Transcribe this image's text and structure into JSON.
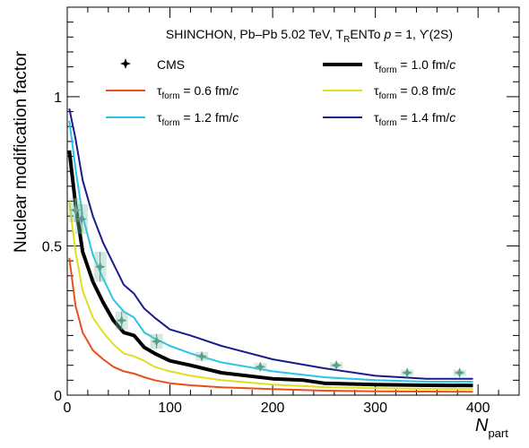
{
  "chart_data": {
    "type": "line",
    "annotation": {
      "prefix": "SHINCHON, Pb–Pb 5.02 TeV, T",
      "sub": "R",
      "mid": "ENTo ",
      "p": "p",
      "suffix": " = 1, ϒ(2S)"
    },
    "xlabel": {
      "main": "N",
      "sub": "part"
    },
    "ylabel": "Nuclear modification factor",
    "xlim": [
      0,
      440
    ],
    "ylim": [
      0,
      1.3
    ],
    "x_ticks": [
      "0",
      "100",
      "200",
      "300",
      "400"
    ],
    "y_ticks": [
      "0",
      "0.5",
      "1"
    ],
    "legend": {
      "placement": "top",
      "cms_label": "CMS",
      "tau_symbol": "τ",
      "tau_sub": "form",
      "units": " fm/",
      "c": "c"
    },
    "cms_points": [
      {
        "x": 8,
        "y": 0.62,
        "err": 0.04
      },
      {
        "x": 14,
        "y": 0.59,
        "err": 0.05
      },
      {
        "x": 32,
        "y": 0.43,
        "err": 0.05
      },
      {
        "x": 53,
        "y": 0.25,
        "err": 0.03
      },
      {
        "x": 87,
        "y": 0.18,
        "err": 0.025
      },
      {
        "x": 131,
        "y": 0.13,
        "err": 0.015
      },
      {
        "x": 188,
        "y": 0.095,
        "err": 0.012
      },
      {
        "x": 262,
        "y": 0.1,
        "err": 0.01
      },
      {
        "x": 331,
        "y": 0.075,
        "err": 0.01
      },
      {
        "x": 382,
        "y": 0.075,
        "err": 0.01
      }
    ],
    "series": [
      {
        "value": "0.6",
        "color": "#e8501a",
        "legend_col": 0,
        "legend_row": 1,
        "x": [
          2,
          8,
          15,
          25,
          35,
          45,
          55,
          65,
          75,
          85,
          100,
          120,
          150,
          200,
          250,
          300,
          350,
          395
        ],
        "y": [
          0.46,
          0.3,
          0.21,
          0.15,
          0.12,
          0.095,
          0.08,
          0.072,
          0.06,
          0.05,
          0.04,
          0.033,
          0.026,
          0.02,
          0.015,
          0.013,
          0.012,
          0.011
        ]
      },
      {
        "value": "0.8",
        "color": "#e4dc1e",
        "legend_col": 1,
        "legend_row": 1,
        "x": [
          2,
          8,
          15,
          25,
          35,
          45,
          55,
          65,
          75,
          85,
          100,
          120,
          150,
          200,
          250,
          300,
          350,
          395
        ],
        "y": [
          0.65,
          0.48,
          0.35,
          0.26,
          0.21,
          0.17,
          0.14,
          0.13,
          0.115,
          0.095,
          0.08,
          0.065,
          0.05,
          0.035,
          0.027,
          0.023,
          0.021,
          0.02
        ]
      },
      {
        "value": "1.0",
        "color": "#000000",
        "legend_col": 1,
        "legend_row": 0,
        "thick": true,
        "x": [
          2,
          8,
          15,
          25,
          35,
          45,
          55,
          65,
          75,
          85,
          100,
          120,
          150,
          200,
          230,
          250,
          300,
          350,
          395
        ],
        "y": [
          0.82,
          0.64,
          0.48,
          0.38,
          0.31,
          0.25,
          0.21,
          0.2,
          0.16,
          0.14,
          0.115,
          0.1,
          0.075,
          0.055,
          0.05,
          0.04,
          0.035,
          0.033,
          0.032
        ]
      },
      {
        "value": "1.2",
        "color": "#2ac4e8",
        "legend_col": 0,
        "legend_row": 2,
        "x": [
          2,
          8,
          15,
          25,
          35,
          45,
          55,
          65,
          75,
          85,
          100,
          120,
          150,
          200,
          250,
          300,
          350,
          395
        ],
        "y": [
          0.92,
          0.76,
          0.6,
          0.47,
          0.39,
          0.32,
          0.28,
          0.26,
          0.21,
          0.19,
          0.165,
          0.14,
          0.11,
          0.08,
          0.06,
          0.05,
          0.045,
          0.045
        ]
      },
      {
        "value": "1.4",
        "color": "#1a1a8c",
        "legend_col": 1,
        "legend_row": 2,
        "x": [
          2,
          8,
          15,
          25,
          35,
          45,
          55,
          65,
          75,
          85,
          100,
          120,
          150,
          200,
          250,
          300,
          350,
          395
        ],
        "y": [
          0.96,
          0.86,
          0.72,
          0.6,
          0.51,
          0.44,
          0.37,
          0.34,
          0.29,
          0.26,
          0.22,
          0.2,
          0.165,
          0.12,
          0.09,
          0.065,
          0.055,
          0.055
        ]
      }
    ]
  }
}
